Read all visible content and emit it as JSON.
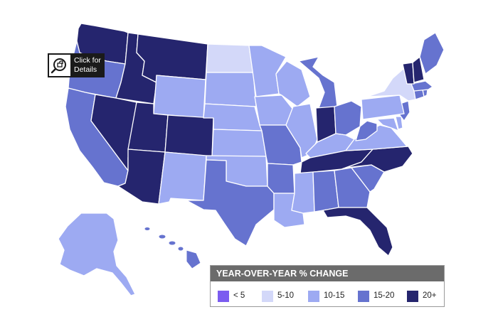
{
  "tooltip": {
    "label": "Click for Details",
    "icon": "magnifier-icon"
  },
  "legend": {
    "title": "YEAR-OVER-YEAR % CHANGE",
    "items": [
      {
        "label": "< 5",
        "color": "#7b5cf0"
      },
      {
        "label": "5-10",
        "color": "#d3d8f9"
      },
      {
        "label": "10-15",
        "color": "#9daaf2"
      },
      {
        "label": "15-20",
        "color": "#6673cf"
      },
      {
        "label": "20+",
        "color": "#25256e"
      }
    ]
  },
  "states": [
    {
      "name": "WA",
      "category": "20+"
    },
    {
      "name": "OR",
      "category": "15-20"
    },
    {
      "name": "CA",
      "category": "15-20"
    },
    {
      "name": "ID",
      "category": "20+"
    },
    {
      "name": "NV",
      "category": "20+"
    },
    {
      "name": "MT",
      "category": "20+"
    },
    {
      "name": "WY",
      "category": "10-15"
    },
    {
      "name": "UT",
      "category": "20+"
    },
    {
      "name": "AZ",
      "category": "20+"
    },
    {
      "name": "CO",
      "category": "20+"
    },
    {
      "name": "NM",
      "category": "10-15"
    },
    {
      "name": "ND",
      "category": "5-10"
    },
    {
      "name": "SD",
      "category": "10-15"
    },
    {
      "name": "NE",
      "category": "10-15"
    },
    {
      "name": "KS",
      "category": "10-15"
    },
    {
      "name": "OK",
      "category": "10-15"
    },
    {
      "name": "TX",
      "category": "15-20"
    },
    {
      "name": "MN",
      "category": "10-15"
    },
    {
      "name": "IA",
      "category": "10-15"
    },
    {
      "name": "MO",
      "category": "15-20"
    },
    {
      "name": "AR",
      "category": "15-20"
    },
    {
      "name": "LA",
      "category": "10-15"
    },
    {
      "name": "WI",
      "category": "10-15"
    },
    {
      "name": "IL",
      "category": "10-15"
    },
    {
      "name": "MI",
      "category": "15-20"
    },
    {
      "name": "IN",
      "category": "20+"
    },
    {
      "name": "OH",
      "category": "15-20"
    },
    {
      "name": "KY",
      "category": "10-15"
    },
    {
      "name": "TN",
      "category": "20+"
    },
    {
      "name": "MS",
      "category": "10-15"
    },
    {
      "name": "AL",
      "category": "15-20"
    },
    {
      "name": "GA",
      "category": "15-20"
    },
    {
      "name": "FL",
      "category": "20+"
    },
    {
      "name": "SC",
      "category": "15-20"
    },
    {
      "name": "NC",
      "category": "20+"
    },
    {
      "name": "VA",
      "category": "10-15"
    },
    {
      "name": "WV",
      "category": "15-20"
    },
    {
      "name": "MD",
      "category": "10-15"
    },
    {
      "name": "DE",
      "category": "10-15"
    },
    {
      "name": "NJ",
      "category": "15-20"
    },
    {
      "name": "PA",
      "category": "10-15"
    },
    {
      "name": "NY",
      "category": "5-10"
    },
    {
      "name": "CT",
      "category": "15-20"
    },
    {
      "name": "RI",
      "category": "15-20"
    },
    {
      "name": "MA",
      "category": "15-20"
    },
    {
      "name": "VT",
      "category": "20+"
    },
    {
      "name": "NH",
      "category": "20+"
    },
    {
      "name": "ME",
      "category": "15-20"
    },
    {
      "name": "AK",
      "category": "10-15"
    },
    {
      "name": "HI",
      "category": "15-20"
    }
  ]
}
